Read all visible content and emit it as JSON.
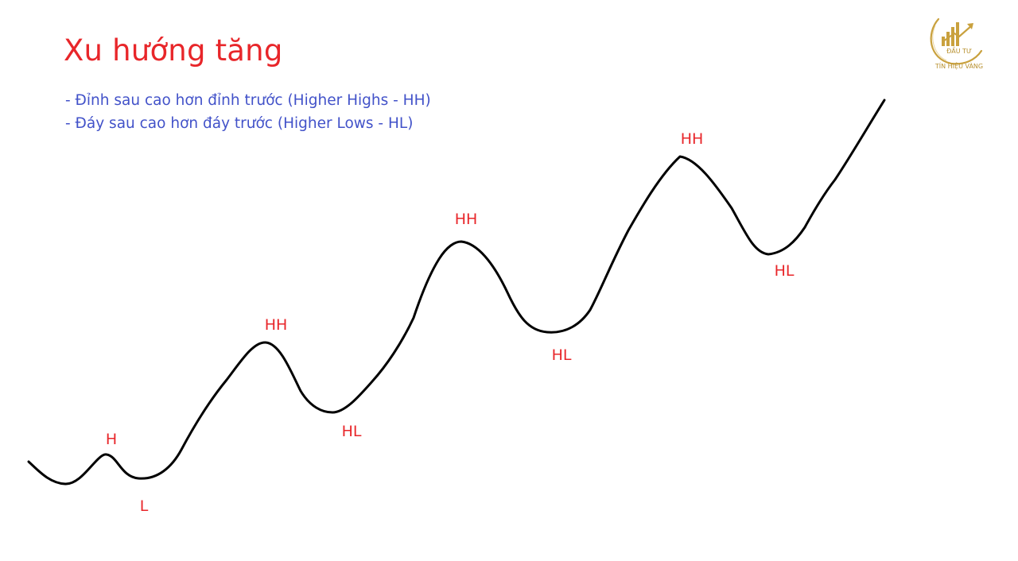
{
  "title": "Xu hướng tăng",
  "bullets": [
    "- Đỉnh sau cao hơn đỉnh trước (Higher Highs - HH)",
    "- Đáy sau cao hơn đáy trước (Higher Lows - HL)"
  ],
  "points": {
    "h": "H",
    "l": "L",
    "hh1": "HH",
    "hl1": "HL",
    "hh2": "HH",
    "hl2": "HL",
    "hh3": "HH",
    "hl3": "HL"
  },
  "logo": {
    "top_text": "ĐẦU TƯ",
    "bottom_text": "TÍN HIỆU VÀNG"
  },
  "colors": {
    "title": "#e8262a",
    "bullets": "#4252c9",
    "labels": "#e8262a",
    "line": "#000000",
    "logo": "#c9a13e"
  }
}
